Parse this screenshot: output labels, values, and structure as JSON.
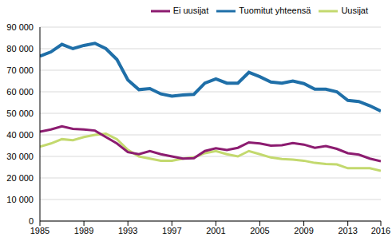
{
  "chart_data": {
    "type": "line",
    "x": [
      1985,
      1986,
      1987,
      1988,
      1989,
      1990,
      1991,
      1992,
      1993,
      1994,
      1995,
      1996,
      1997,
      1998,
      1999,
      2000,
      2001,
      2002,
      2003,
      2004,
      2005,
      2006,
      2007,
      2008,
      2009,
      2010,
      2011,
      2012,
      2013,
      2014,
      2015,
      2016
    ],
    "series": [
      {
        "name": "Tuomitut yhteensä",
        "color": "#1f6fa8",
        "values": [
          76500,
          78500,
          82000,
          80000,
          81500,
          82500,
          80000,
          75000,
          65500,
          61000,
          61500,
          59000,
          58000,
          58500,
          58800,
          64000,
          66000,
          64000,
          64000,
          69000,
          67000,
          64500,
          64000,
          65000,
          63800,
          61200,
          61200,
          60000,
          56000,
          55500,
          53500,
          51000
        ]
      },
      {
        "name": "Uusijat",
        "color": "#c3d96e",
        "values": [
          34500,
          36000,
          38000,
          37500,
          39000,
          40000,
          40500,
          38000,
          33000,
          30000,
          29000,
          28000,
          28000,
          29000,
          29500,
          31500,
          32500,
          31000,
          30000,
          32500,
          31000,
          29500,
          28800,
          28500,
          28000,
          27000,
          26500,
          26300,
          24500,
          24500,
          24500,
          23300
        ]
      },
      {
        "name": "Ei uusijat",
        "color": "#8c1c70",
        "values": [
          41500,
          42500,
          44000,
          42800,
          42500,
          42000,
          39000,
          36000,
          32000,
          31000,
          32500,
          31000,
          30000,
          29000,
          29200,
          32500,
          33800,
          33000,
          34000,
          36500,
          36000,
          35000,
          35200,
          36200,
          35500,
          34000,
          34800,
          33500,
          31500,
          30800,
          29000,
          27800
        ]
      }
    ],
    "xlim": [
      1985,
      2016
    ],
    "xticks": [
      1985,
      1989,
      1993,
      1997,
      2001,
      2005,
      2009,
      2013,
      2016
    ],
    "ylim": [
      0,
      90000
    ],
    "yticks": [
      0,
      {
        "value": 10000,
        "label": "10 000"
      },
      {
        "value": 20000,
        "label": "20 000"
      },
      {
        "value": 30000,
        "label": "30 000"
      },
      {
        "value": 40000,
        "label": "40 000"
      },
      {
        "value": 50000,
        "label": "50 000"
      },
      {
        "value": 60000,
        "label": "60 000"
      },
      {
        "value": 70000,
        "label": "70 000"
      },
      {
        "value": 80000,
        "label": "80 000"
      },
      {
        "value": 90000,
        "label": "90 000"
      }
    ],
    "grid": true,
    "legend": "upper right"
  }
}
